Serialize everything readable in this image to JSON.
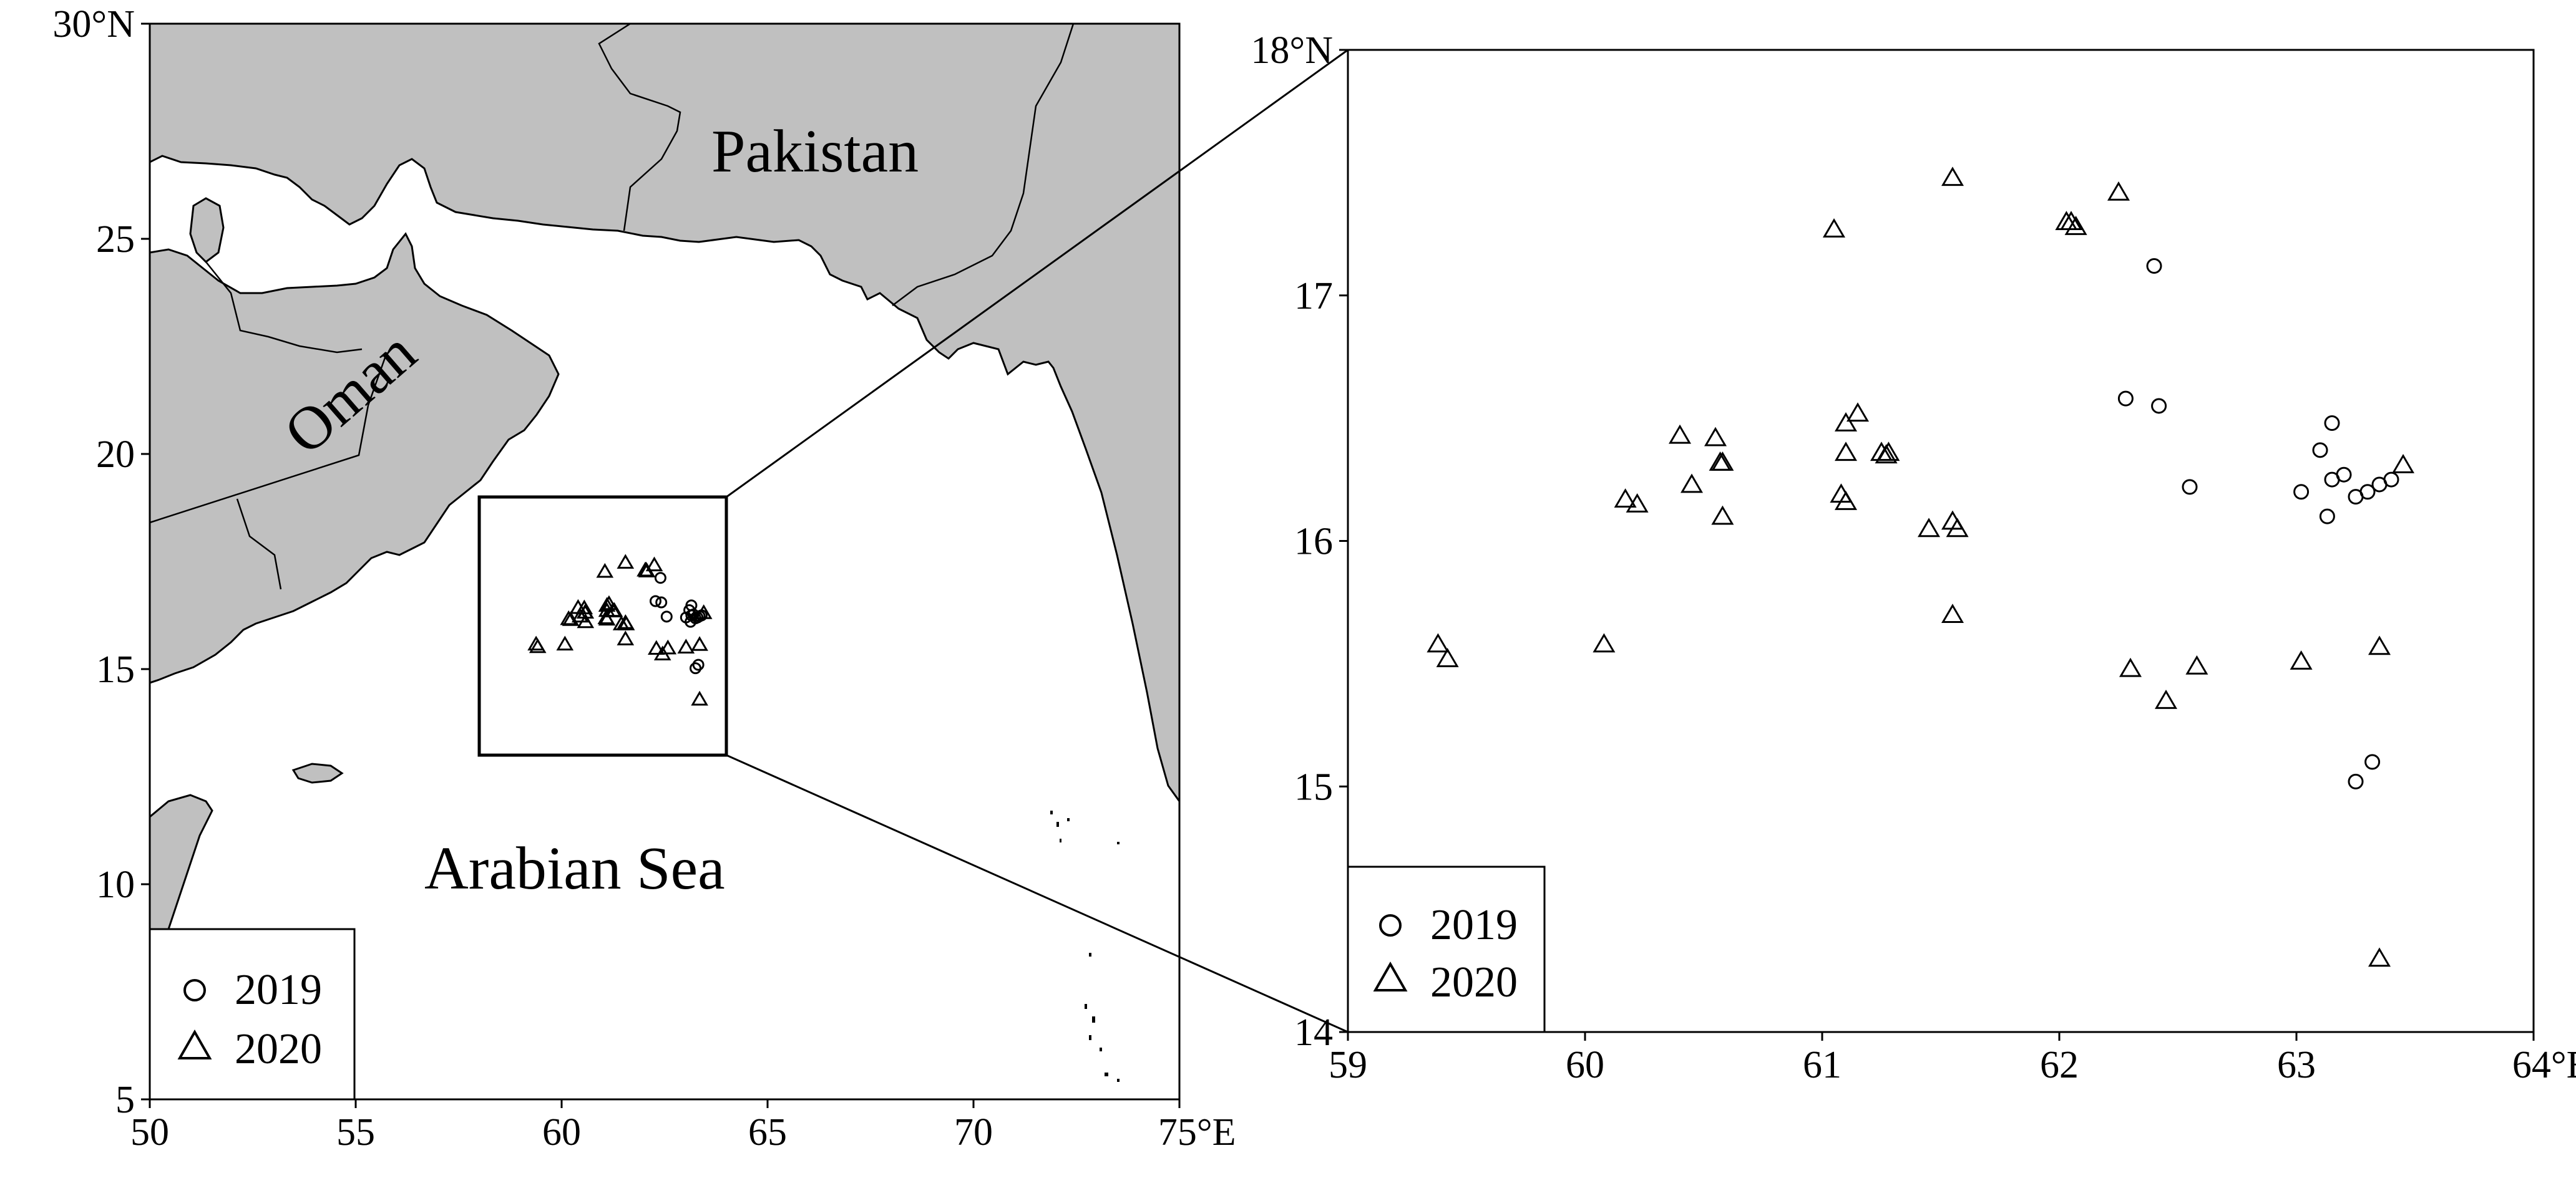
{
  "colors": {
    "land": "#c0c0c0",
    "sea": "#ffffff",
    "ink": "#000000"
  },
  "overview_map": {
    "x_range": [
      50,
      75
    ],
    "y_range": [
      5,
      30
    ],
    "x_ticks": [
      50,
      55,
      60,
      65,
      70,
      75
    ],
    "y_ticks": [
      5,
      10,
      15,
      20,
      25,
      30
    ],
    "x_tick_labels": [
      "50",
      "55",
      "60",
      "65",
      "70",
      "75°E"
    ],
    "y_tick_labels": [
      "5",
      "10",
      "15",
      "20",
      "25",
      "30°N"
    ],
    "place_labels": {
      "pakistan": "Pakistan",
      "oman": "Oman",
      "sea": "Arabian Sea"
    },
    "study_box": {
      "lon": [
        58,
        64
      ],
      "lat": [
        13,
        19
      ]
    },
    "legend": [
      {
        "label": "2019",
        "marker": "circle"
      },
      {
        "label": "2020",
        "marker": "triangle"
      }
    ]
  },
  "detail_map": {
    "x_range": [
      59,
      64
    ],
    "y_range": [
      14,
      18
    ],
    "x_ticks": [
      59,
      60,
      61,
      62,
      63,
      64
    ],
    "y_ticks": [
      14,
      15,
      16,
      17,
      18
    ],
    "x_tick_labels": [
      "59",
      "60",
      "61",
      "62",
      "63",
      "64°E"
    ],
    "y_tick_labels": [
      "14",
      "15",
      "16",
      "17",
      "18°N"
    ],
    "legend": [
      {
        "label": "2019",
        "marker": "circle"
      },
      {
        "label": "2020",
        "marker": "triangle"
      }
    ]
  },
  "stations": {
    "y2019": [
      [
        62.4,
        17.12
      ],
      [
        62.28,
        16.58
      ],
      [
        62.42,
        16.55
      ],
      [
        62.55,
        16.22
      ],
      [
        63.15,
        16.48
      ],
      [
        63.1,
        16.37
      ],
      [
        63.2,
        16.27
      ],
      [
        63.15,
        16.25
      ],
      [
        63.02,
        16.2
      ],
      [
        63.25,
        16.18
      ],
      [
        63.3,
        16.2
      ],
      [
        63.35,
        16.23
      ],
      [
        63.4,
        16.25
      ],
      [
        63.13,
        16.1
      ],
      [
        63.32,
        15.1
      ],
      [
        63.25,
        15.02
      ]
    ],
    "y2020": [
      [
        61.55,
        17.48
      ],
      [
        62.25,
        17.42
      ],
      [
        61.05,
        17.27
      ],
      [
        62.03,
        17.3
      ],
      [
        62.07,
        17.28
      ],
      [
        62.05,
        17.3
      ],
      [
        60.4,
        16.43
      ],
      [
        60.55,
        16.42
      ],
      [
        60.57,
        16.32
      ],
      [
        60.58,
        16.32
      ],
      [
        60.45,
        16.23
      ],
      [
        61.15,
        16.52
      ],
      [
        61.1,
        16.48
      ],
      [
        61.1,
        16.36
      ],
      [
        61.25,
        16.36
      ],
      [
        61.27,
        16.35
      ],
      [
        61.28,
        16.36
      ],
      [
        60.22,
        16.15
      ],
      [
        60.17,
        16.17
      ],
      [
        60.58,
        16.1
      ],
      [
        61.08,
        16.19
      ],
      [
        61.1,
        16.16
      ],
      [
        61.45,
        16.05
      ],
      [
        61.55,
        16.08
      ],
      [
        61.57,
        16.05
      ],
      [
        61.55,
        15.7
      ],
      [
        59.38,
        15.58
      ],
      [
        59.42,
        15.52
      ],
      [
        60.08,
        15.58
      ],
      [
        62.3,
        15.48
      ],
      [
        62.58,
        15.49
      ],
      [
        62.45,
        15.35
      ],
      [
        63.02,
        15.51
      ],
      [
        63.35,
        15.57
      ],
      [
        63.45,
        16.31
      ],
      [
        63.35,
        14.3
      ]
    ]
  }
}
